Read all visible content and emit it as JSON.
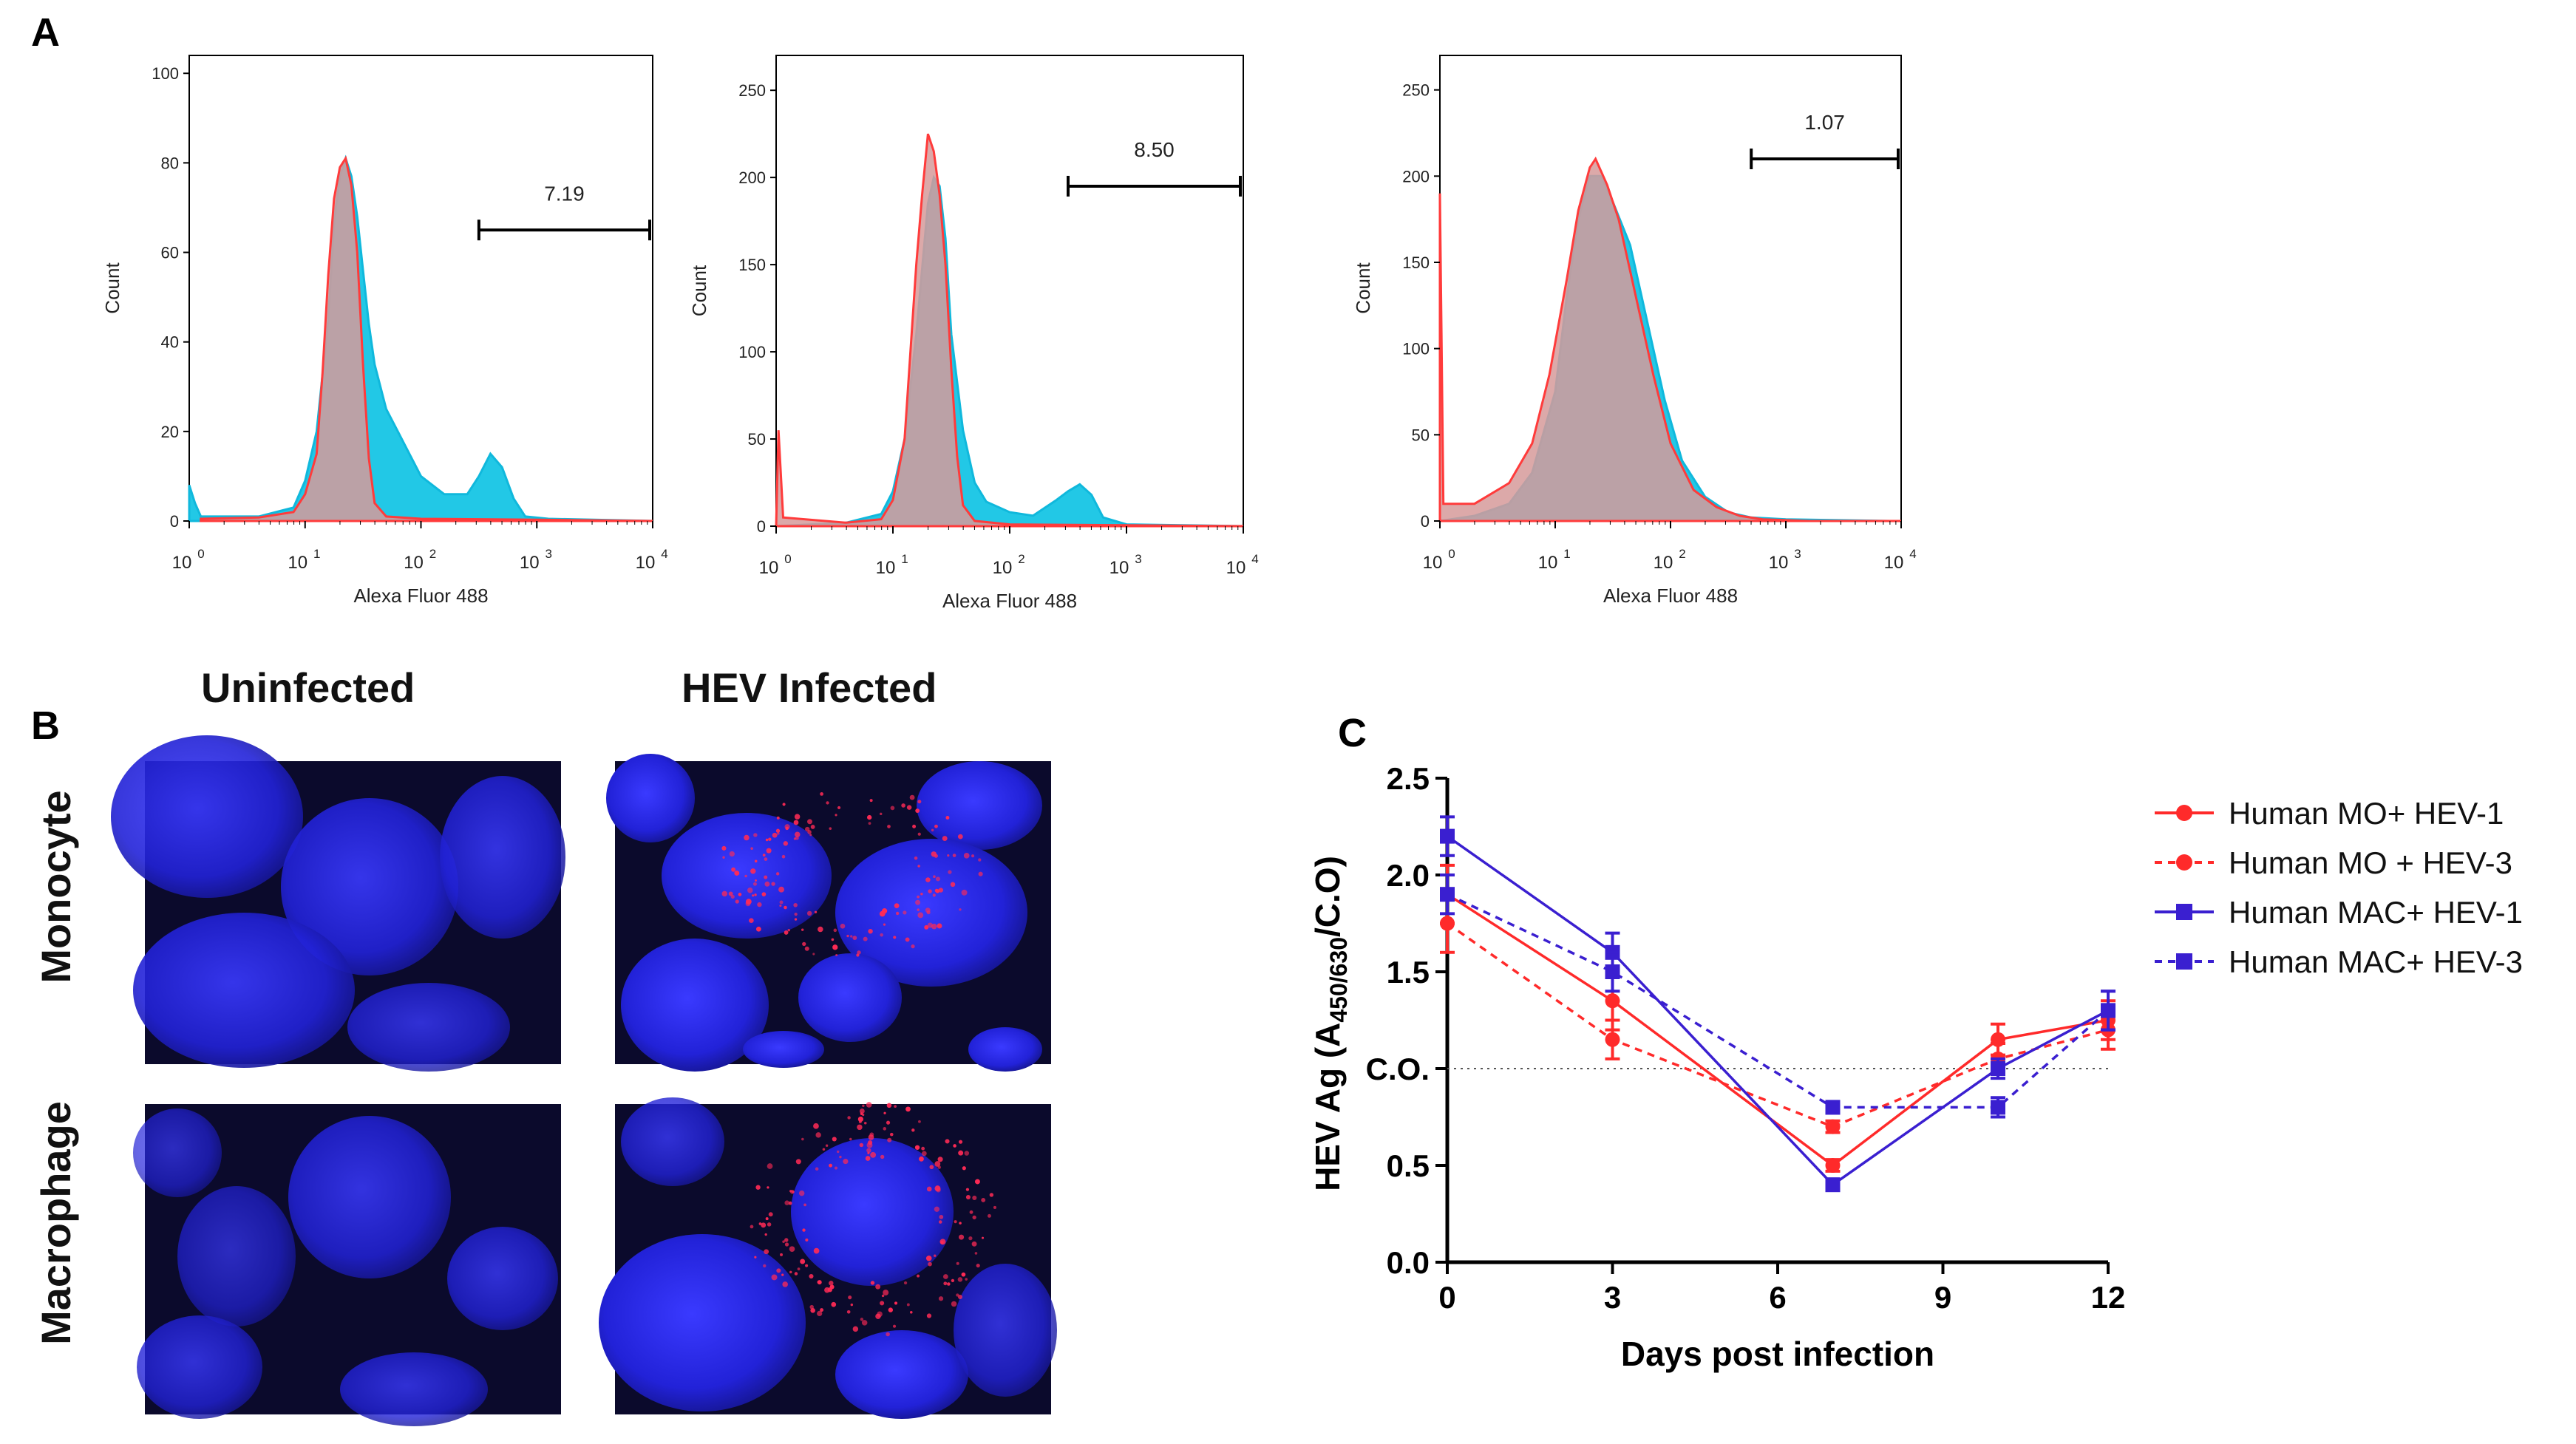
{
  "panels": {
    "a_label": "A",
    "b_label": "B",
    "c_label": "C"
  },
  "histograms": [
    {
      "gate_value": "7.19",
      "xlabel": "Alexa Fluor 488",
      "ylabel": "Count",
      "yticks": [
        0,
        20,
        40,
        60,
        80,
        100
      ],
      "ymax": 104,
      "x_decades": [
        "10",
        "10",
        "10",
        "10",
        "10"
      ],
      "x_exponents": [
        "0",
        "1",
        "2",
        "3",
        "4"
      ],
      "gate_range_log": [
        2.5,
        4.0
      ],
      "gate_y": 65,
      "series": {
        "red_pts": [
          [
            0.1,
            0.5
          ],
          [
            0.6,
            0.8
          ],
          [
            0.9,
            2
          ],
          [
            1.0,
            6
          ],
          [
            1.1,
            15
          ],
          [
            1.15,
            33
          ],
          [
            1.2,
            55
          ],
          [
            1.25,
            72
          ],
          [
            1.3,
            79
          ],
          [
            1.35,
            81
          ],
          [
            1.4,
            75
          ],
          [
            1.45,
            60
          ],
          [
            1.5,
            35
          ],
          [
            1.55,
            14
          ],
          [
            1.6,
            4
          ],
          [
            1.7,
            1
          ],
          [
            2,
            0.5
          ],
          [
            3,
            0.3
          ],
          [
            4,
            0
          ]
        ],
        "cyan_pts": [
          [
            0.0,
            8
          ],
          [
            0.05,
            4
          ],
          [
            0.1,
            1
          ],
          [
            0.6,
            1
          ],
          [
            0.9,
            3
          ],
          [
            1.0,
            9
          ],
          [
            1.1,
            20
          ],
          [
            1.2,
            45
          ],
          [
            1.25,
            67
          ],
          [
            1.3,
            77
          ],
          [
            1.35,
            81
          ],
          [
            1.4,
            77
          ],
          [
            1.45,
            68
          ],
          [
            1.5,
            56
          ],
          [
            1.55,
            44
          ],
          [
            1.6,
            35
          ],
          [
            1.7,
            25
          ],
          [
            1.8,
            20
          ],
          [
            1.9,
            15
          ],
          [
            2.0,
            10
          ],
          [
            2.2,
            6
          ],
          [
            2.4,
            6
          ],
          [
            2.5,
            10
          ],
          [
            2.6,
            15
          ],
          [
            2.7,
            12
          ],
          [
            2.8,
            5
          ],
          [
            2.9,
            1
          ],
          [
            3.1,
            0.5
          ],
          [
            4,
            0
          ]
        ]
      }
    },
    {
      "gate_value": "8.50",
      "xlabel": "Alexa Fluor 488",
      "ylabel": "Count",
      "yticks": [
        0,
        50,
        100,
        150,
        200,
        250
      ],
      "ymax": 270,
      "x_decades": [
        "10",
        "10",
        "10",
        "10",
        "10"
      ],
      "x_exponents": [
        "0",
        "1",
        "2",
        "3",
        "4"
      ],
      "gate_range_log": [
        2.5,
        4.0
      ],
      "gate_y": 195,
      "series": {
        "red_pts": [
          [
            0.0,
            0
          ],
          [
            0.02,
            55
          ],
          [
            0.06,
            5
          ],
          [
            0.6,
            2
          ],
          [
            0.9,
            4
          ],
          [
            1.0,
            15
          ],
          [
            1.1,
            50
          ],
          [
            1.2,
            150
          ],
          [
            1.25,
            190
          ],
          [
            1.3,
            225
          ],
          [
            1.35,
            215
          ],
          [
            1.4,
            190
          ],
          [
            1.45,
            150
          ],
          [
            1.5,
            90
          ],
          [
            1.55,
            40
          ],
          [
            1.6,
            12
          ],
          [
            1.7,
            3
          ],
          [
            2,
            1
          ],
          [
            4,
            0
          ]
        ],
        "cyan_pts": [
          [
            0.0,
            0
          ],
          [
            0.6,
            2
          ],
          [
            0.9,
            7
          ],
          [
            1.0,
            20
          ],
          [
            1.1,
            50
          ],
          [
            1.2,
            110
          ],
          [
            1.3,
            185
          ],
          [
            1.35,
            200
          ],
          [
            1.4,
            195
          ],
          [
            1.45,
            165
          ],
          [
            1.5,
            110
          ],
          [
            1.6,
            55
          ],
          [
            1.7,
            25
          ],
          [
            1.8,
            14
          ],
          [
            2.0,
            8
          ],
          [
            2.2,
            6
          ],
          [
            2.4,
            15
          ],
          [
            2.5,
            20
          ],
          [
            2.6,
            24
          ],
          [
            2.7,
            18
          ],
          [
            2.8,
            5
          ],
          [
            3.0,
            1
          ],
          [
            4,
            0
          ]
        ]
      }
    },
    {
      "gate_value": "1.07",
      "xlabel": "Alexa Fluor 488",
      "ylabel": "Count",
      "yticks": [
        0,
        50,
        100,
        150,
        200,
        250
      ],
      "ymax": 270,
      "x_decades": [
        "10",
        "10",
        "10",
        "10",
        "10"
      ],
      "x_exponents": [
        "0",
        "1",
        "2",
        "3",
        "4"
      ],
      "gate_range_log": [
        2.7,
        4.0
      ],
      "gate_y": 210,
      "series": {
        "red_pts": [
          [
            0.0,
            190
          ],
          [
            0.03,
            10
          ],
          [
            0.3,
            10
          ],
          [
            0.6,
            22
          ],
          [
            0.8,
            45
          ],
          [
            0.95,
            85
          ],
          [
            1.1,
            140
          ],
          [
            1.2,
            180
          ],
          [
            1.3,
            205
          ],
          [
            1.35,
            210
          ],
          [
            1.45,
            195
          ],
          [
            1.55,
            175
          ],
          [
            1.7,
            130
          ],
          [
            1.85,
            85
          ],
          [
            2.0,
            45
          ],
          [
            2.2,
            18
          ],
          [
            2.4,
            8
          ],
          [
            2.6,
            3
          ],
          [
            2.8,
            1
          ],
          [
            3.2,
            0
          ],
          [
            4,
            0
          ]
        ],
        "cyan_pts": [
          [
            0.0,
            0
          ],
          [
            0.3,
            3
          ],
          [
            0.6,
            10
          ],
          [
            0.8,
            28
          ],
          [
            1.0,
            75
          ],
          [
            1.1,
            130
          ],
          [
            1.2,
            175
          ],
          [
            1.3,
            200
          ],
          [
            1.4,
            200
          ],
          [
            1.5,
            185
          ],
          [
            1.65,
            160
          ],
          [
            1.8,
            115
          ],
          [
            1.95,
            70
          ],
          [
            2.1,
            35
          ],
          [
            2.3,
            14
          ],
          [
            2.5,
            5
          ],
          [
            2.7,
            2
          ],
          [
            3,
            1
          ],
          [
            3.9,
            0
          ],
          [
            4,
            0
          ]
        ]
      }
    }
  ],
  "micrographs": {
    "col_uninfected": "Uninfected",
    "col_infected": "HEV Infected",
    "row_monocyte": "Monocyte",
    "row_macrophage": "Macrophage"
  },
  "chart_data": {
    "type": "line",
    "title": "",
    "xlabel": "Days post infection",
    "ylabel_main": "HEV Ag (A",
    "ylabel_sub": "450/630",
    "ylabel_tail": "/C.O)",
    "x": [
      0,
      3,
      7,
      10,
      12
    ],
    "xticks": [
      "0",
      "3",
      "6",
      "9",
      "12"
    ],
    "xlim": [
      0,
      12
    ],
    "ylim": [
      0,
      2.5
    ],
    "yticks": [
      "0.0",
      "0.5",
      "C.O.",
      "1.5",
      "2.0",
      "2.5"
    ],
    "cutoff": 1.0,
    "cutoff_label": "C.O.",
    "colors": {
      "red": "#ff2a2a",
      "blue": "#3a1fd0"
    },
    "series": [
      {
        "name": "Human MO+ HEV-1",
        "color": "#ff2a2a",
        "dash": "solid",
        "marker": "circle",
        "values": [
          1.9,
          1.35,
          0.5,
          1.15,
          1.25
        ],
        "err": [
          0.15,
          0.15,
          0.03,
          0.08,
          0.1
        ]
      },
      {
        "name": "Human MO + HEV-3",
        "color": "#ff2a2a",
        "dash": "dashed",
        "marker": "circle",
        "values": [
          1.75,
          1.15,
          0.7,
          1.05,
          1.2
        ],
        "err": [
          0.15,
          0.1,
          0.03,
          0.08,
          0.1
        ]
      },
      {
        "name": "Human MAC+ HEV-1",
        "color": "#3a1fd0",
        "dash": "solid",
        "marker": "square",
        "values": [
          2.2,
          1.6,
          0.4,
          1.0,
          1.3
        ],
        "err": [
          0.1,
          0.1,
          0.03,
          0.05,
          0.1
        ]
      },
      {
        "name": "Human MAC+ HEV-3",
        "color": "#3a1fd0",
        "dash": "dashed",
        "marker": "square",
        "values": [
          1.9,
          1.5,
          0.8,
          0.8,
          1.3
        ],
        "err": [
          0.1,
          0.1,
          0.03,
          0.05,
          0.1
        ]
      }
    ]
  }
}
